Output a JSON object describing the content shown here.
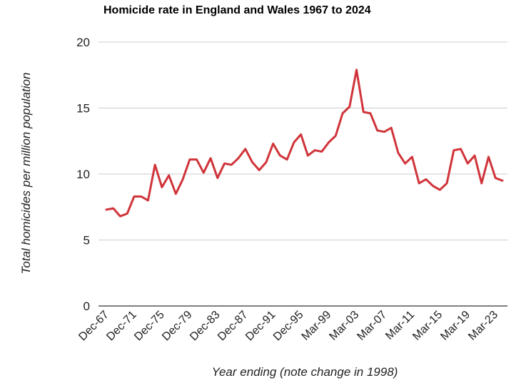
{
  "chart_data": {
    "type": "line",
    "title": "Homicide rate in England and Wales 1967 to 2024",
    "xlabel": "Year ending (note change in 1998)",
    "ylabel": "Total homicides per million population",
    "ylim": [
      0,
      20
    ],
    "yticks": [
      0,
      5,
      10,
      15,
      20
    ],
    "xtick_labels": [
      "Dec-67",
      "Dec-71",
      "Dec-75",
      "Dec-79",
      "Dec-83",
      "Dec-87",
      "Dec-91",
      "Dec-95",
      "Mar-99",
      "Mar-03",
      "Mar-07",
      "Mar-11",
      "Mar-15",
      "Mar-19",
      "Mar-23"
    ],
    "grid": true,
    "color": "#d0343a",
    "series": [
      {
        "name": "Homicide rate",
        "values": [
          7.3,
          7.4,
          6.8,
          7.0,
          8.3,
          8.3,
          8.0,
          10.7,
          9.0,
          9.9,
          8.5,
          9.6,
          11.1,
          11.1,
          10.1,
          11.2,
          9.7,
          10.8,
          10.7,
          11.2,
          11.9,
          10.9,
          10.3,
          10.9,
          12.3,
          11.4,
          11.1,
          12.4,
          13.0,
          11.4,
          11.8,
          11.7,
          12.4,
          12.9,
          14.6,
          15.1,
          17.9,
          14.7,
          14.6,
          13.3,
          13.2,
          13.5,
          11.6,
          10.8,
          11.3,
          9.3,
          9.6,
          9.1,
          8.8,
          9.3,
          11.8,
          11.9,
          10.8,
          11.4,
          9.3,
          11.3,
          9.7,
          9.5
        ]
      }
    ]
  }
}
